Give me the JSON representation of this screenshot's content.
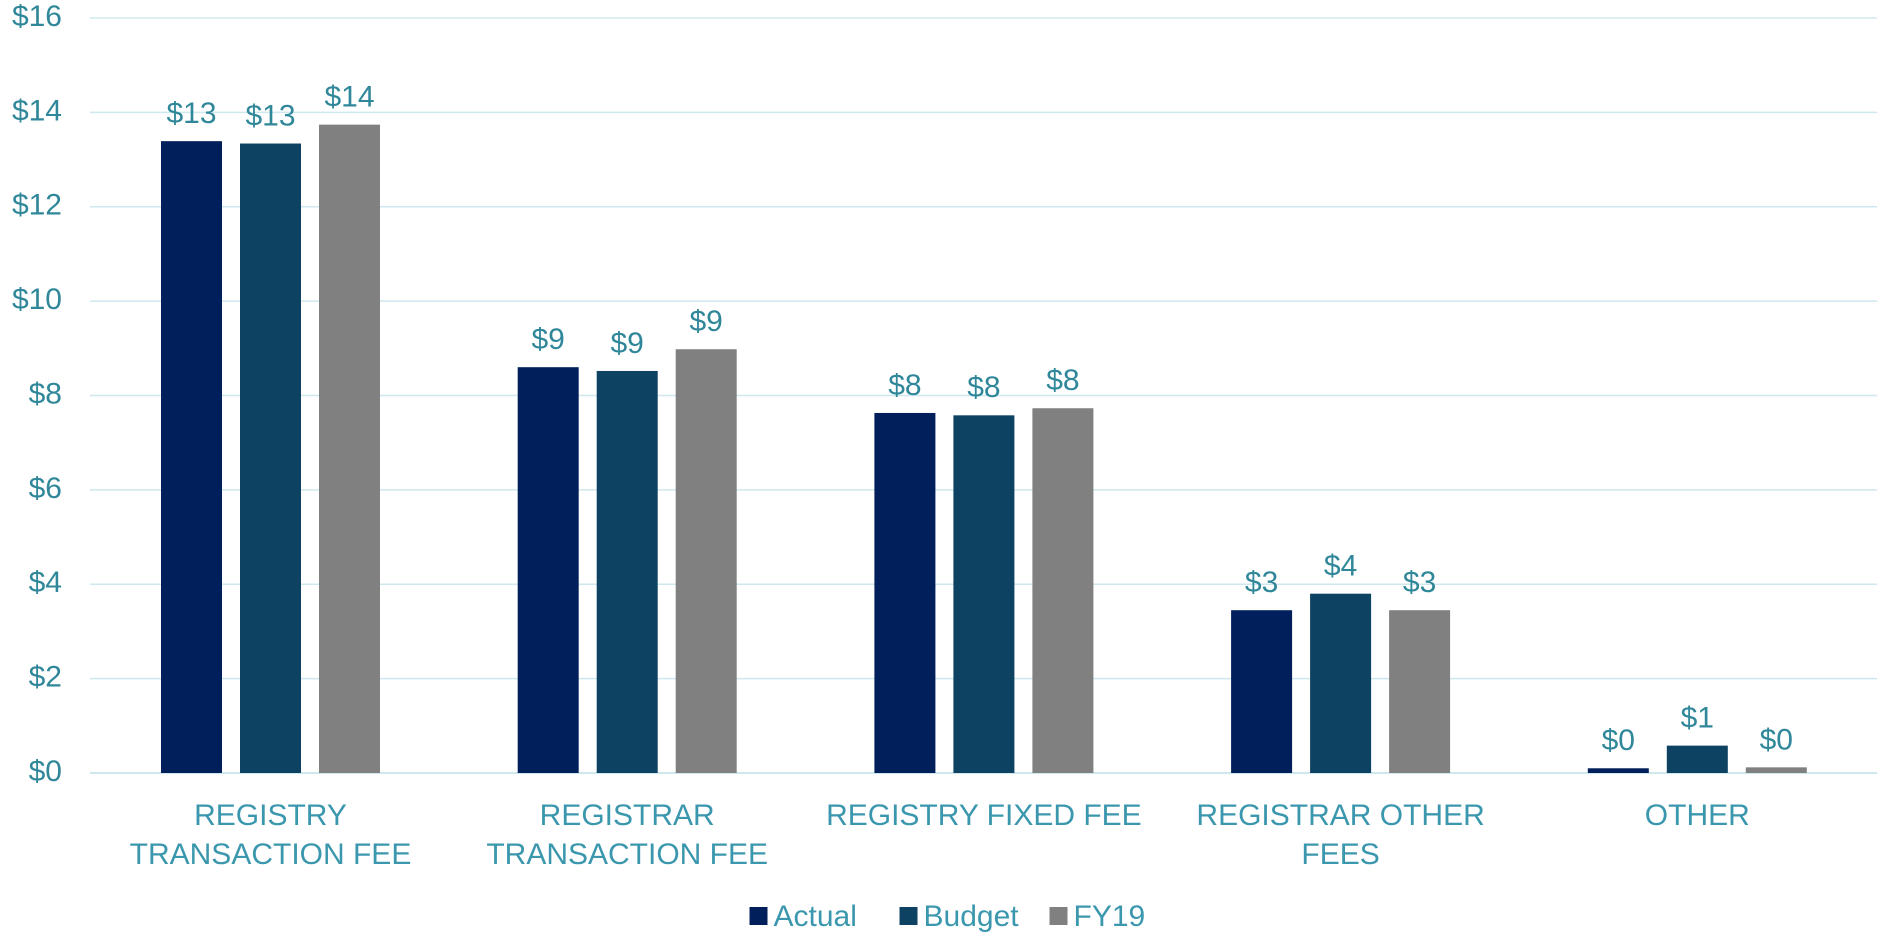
{
  "chart_data": {
    "type": "bar",
    "categories": [
      "REGISTRY TRANSACTION FEE",
      "REGISTRAR TRANSACTION FEE",
      "REGISTRY FIXED FEE",
      "REGISTRAR OTHER FEES",
      "OTHER"
    ],
    "series": [
      {
        "name": "Actual",
        "color": "#001f5b",
        "values": [
          13.39,
          8.6,
          7.63,
          3.45,
          0.1
        ],
        "value_labels": [
          "$13",
          "$9",
          "$8",
          "$3",
          "$0"
        ]
      },
      {
        "name": "Budget",
        "color": "#0d4263",
        "values": [
          13.34,
          8.52,
          7.58,
          3.8,
          0.58
        ],
        "value_labels": [
          "$13",
          "$9",
          "$8",
          "$4",
          "$1"
        ]
      },
      {
        "name": "FY19",
        "color": "#808080",
        "values": [
          13.74,
          8.98,
          7.73,
          3.45,
          0.12
        ],
        "value_labels": [
          "$14",
          "$9",
          "$8",
          "$3",
          "$0"
        ]
      }
    ],
    "ylim": [
      0,
      16
    ],
    "yticks": [
      {
        "value": 0,
        "label": "$0"
      },
      {
        "value": 2,
        "label": "$2"
      },
      {
        "value": 4,
        "label": "$4"
      },
      {
        "value": 6,
        "label": "$6"
      },
      {
        "value": 8,
        "label": "$8"
      },
      {
        "value": 10,
        "label": "$10"
      },
      {
        "value": 12,
        "label": "$12"
      },
      {
        "value": 14,
        "label": "$14"
      },
      {
        "value": 16,
        "label": "$16"
      }
    ],
    "grid": true,
    "legend": "bottom"
  }
}
